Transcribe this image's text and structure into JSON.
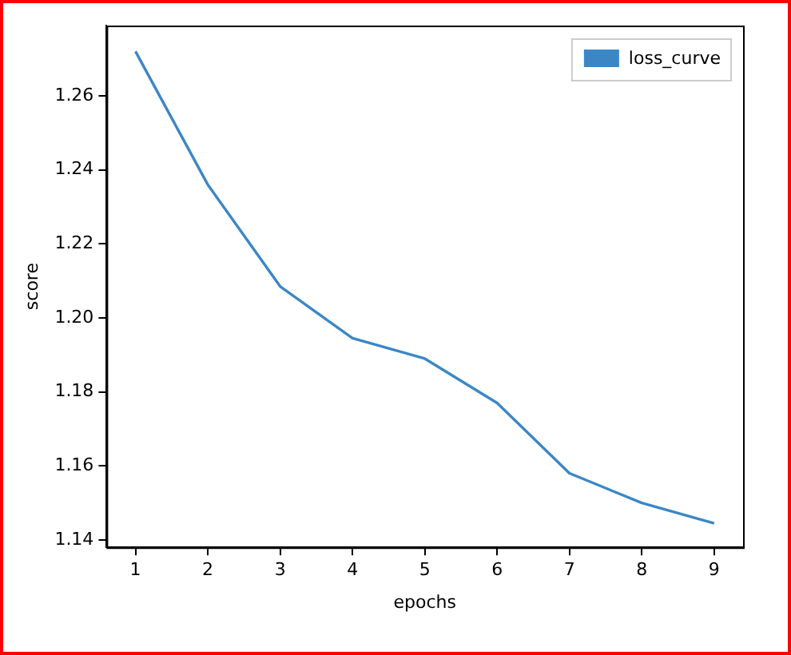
{
  "chart_data": {
    "type": "line",
    "xlabel": "epochs",
    "ylabel": "score",
    "x": [
      1,
      2,
      3,
      4,
      5,
      6,
      7,
      8,
      9
    ],
    "series": [
      {
        "name": "loss_curve",
        "color": "#3b87c6",
        "values": [
          1.272,
          1.236,
          1.2085,
          1.1945,
          1.189,
          1.177,
          1.158,
          1.15,
          1.1445
        ]
      }
    ],
    "xlim": [
      0.6,
      9.4
    ],
    "xticks": [
      1,
      2,
      3,
      4,
      5,
      6,
      7,
      8,
      9
    ],
    "ylim": [
      1.138,
      1.279
    ],
    "yticks": [
      {
        "value": 1.14,
        "label": "1.14"
      },
      {
        "value": 1.16,
        "label": "1.16"
      },
      {
        "value": 1.18,
        "label": "1.18"
      },
      {
        "value": 1.2,
        "label": "1.20"
      },
      {
        "value": 1.22,
        "label": "1.22"
      },
      {
        "value": 1.24,
        "label": "1.24"
      },
      {
        "value": 1.26,
        "label": "1.26"
      }
    ],
    "grid": false,
    "legend": "top right",
    "marker": "none",
    "line_style": "solid"
  }
}
